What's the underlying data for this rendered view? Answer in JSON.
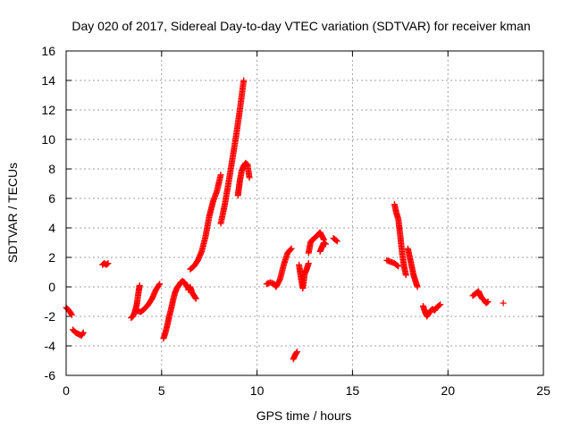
{
  "chart_data": {
    "type": "scatter",
    "title": "Day 020 of 2017, Sidereal Day-to-day VTEC variation (SDTVAR) for receiver kman",
    "xlabel": "GPS time / hours",
    "ylabel": "SDTVAR / TECUs",
    "xlim": [
      0,
      25
    ],
    "ylim": [
      -6,
      16
    ],
    "xticks": [
      0,
      5,
      10,
      15,
      20,
      25
    ],
    "yticks": [
      -6,
      -4,
      -2,
      0,
      2,
      4,
      6,
      8,
      10,
      12,
      14,
      16
    ],
    "grid": true,
    "marker": "+",
    "marker_color": "#ff0000",
    "segments": [
      {
        "x": [
          0.0,
          0.15,
          0.3
        ],
        "y": [
          -1.4,
          -1.6,
          -1.9
        ]
      },
      {
        "x": [
          0.35,
          0.5,
          0.65,
          0.8,
          0.9
        ],
        "y": [
          -2.9,
          -3.1,
          -3.2,
          -3.3,
          -3.1
        ]
      },
      {
        "x": [
          1.9,
          2.0,
          2.1,
          2.2
        ],
        "y": [
          1.5,
          1.6,
          1.5,
          1.6
        ]
      },
      {
        "x": [
          3.4,
          3.5,
          3.6,
          3.7,
          3.8,
          3.85
        ],
        "y": [
          -2.1,
          -2.0,
          -1.7,
          -1.2,
          -0.3,
          0.1
        ]
      },
      {
        "x": [
          3.7,
          3.9,
          4.1,
          4.3,
          4.5,
          4.7,
          4.9
        ],
        "y": [
          -1.6,
          -1.7,
          -1.5,
          -1.2,
          -0.8,
          -0.2,
          0.2
        ]
      },
      {
        "x": [
          5.1,
          5.2,
          5.3,
          5.4,
          5.5,
          5.6,
          5.7,
          5.8,
          5.9,
          6.0,
          6.1,
          6.2,
          6.3,
          6.4
        ],
        "y": [
          -3.5,
          -3.1,
          -2.6,
          -2.0,
          -1.5,
          -0.9,
          -0.4,
          -0.1,
          0.1,
          0.3,
          0.4,
          0.3,
          0.1,
          -0.1
        ]
      },
      {
        "x": [
          6.4,
          6.5,
          6.6,
          6.7,
          6.8
        ],
        "y": [
          -0.2,
          0.0,
          -0.4,
          -0.6,
          -0.8
        ]
      },
      {
        "x": [
          6.5,
          6.7,
          6.9,
          7.1,
          7.3,
          7.5,
          7.7,
          7.9,
          8.1
        ],
        "y": [
          1.2,
          1.4,
          1.8,
          2.4,
          3.4,
          4.8,
          5.8,
          6.5,
          7.6
        ]
      },
      {
        "x": [
          8.1,
          8.3,
          8.5,
          8.7,
          8.9,
          9.1,
          9.3
        ],
        "y": [
          4.3,
          5.5,
          7.0,
          8.6,
          10.2,
          12.0,
          14.0
        ]
      },
      {
        "x": [
          9.0,
          9.1,
          9.2,
          9.3,
          9.4,
          9.5,
          9.6
        ],
        "y": [
          6.2,
          7.2,
          7.9,
          8.2,
          8.4,
          8.3,
          7.4
        ]
      },
      {
        "x": [
          10.5,
          10.7,
          10.9,
          11.0,
          11.2,
          11.4,
          11.6,
          11.8
        ],
        "y": [
          0.2,
          0.3,
          0.2,
          0.0,
          0.5,
          1.5,
          2.3,
          2.6
        ]
      },
      {
        "x": [
          11.9,
          12.0,
          12.1
        ],
        "y": [
          -4.9,
          -4.6,
          -4.4
        ]
      },
      {
        "x": [
          12.2,
          12.3,
          12.4,
          12.5,
          12.6,
          12.7
        ],
        "y": [
          1.5,
          0.6,
          -0.1,
          0.9,
          1.2,
          1.6
        ]
      },
      {
        "x": [
          12.7,
          12.8,
          12.9,
          13.0,
          13.1,
          13.3,
          13.5
        ],
        "y": [
          2.3,
          3.0,
          3.2,
          3.3,
          3.4,
          3.7,
          3.2
        ]
      },
      {
        "x": [
          13.3,
          13.4,
          13.5,
          13.6
        ],
        "y": [
          2.4,
          2.7,
          3.0,
          2.9
        ]
      },
      {
        "x": [
          14.0,
          14.1,
          14.2
        ],
        "y": [
          3.3,
          3.2,
          3.1
        ]
      },
      {
        "x": [
          16.8,
          17.0,
          17.2,
          17.4
        ],
        "y": [
          1.8,
          1.7,
          1.6,
          1.4
        ]
      },
      {
        "x": [
          17.2,
          17.3,
          17.4,
          17.5,
          17.6,
          17.7,
          17.8
        ],
        "y": [
          5.6,
          5.0,
          4.6,
          3.5,
          2.3,
          1.4,
          0.8
        ]
      },
      {
        "x": [
          17.9,
          18.0,
          18.1,
          18.2,
          18.3,
          18.4
        ],
        "y": [
          2.6,
          2.0,
          1.4,
          0.8,
          0.4,
          0.0
        ]
      },
      {
        "x": [
          18.7,
          18.8,
          18.9,
          19.0,
          19.1,
          19.2,
          19.3,
          19.4,
          19.5,
          19.6
        ],
        "y": [
          -1.3,
          -1.7,
          -2.0,
          -1.8,
          -1.6,
          -1.5,
          -1.6,
          -1.4,
          -1.3,
          -1.2
        ]
      },
      {
        "x": [
          21.3,
          21.4,
          21.5,
          21.6,
          21.7,
          21.8,
          21.9,
          22.0,
          22.1
        ],
        "y": [
          -0.6,
          -0.5,
          -0.4,
          -0.3,
          -0.6,
          -0.8,
          -0.9,
          -1.1,
          -1.0
        ]
      },
      {
        "x": [
          22.9
        ],
        "y": [
          -1.1
        ]
      }
    ]
  }
}
